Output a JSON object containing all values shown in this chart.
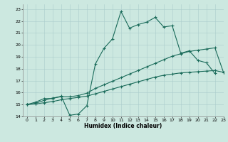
{
  "xlabel": "Humidex (Indice chaleur)",
  "bg_color": "#cce8e0",
  "line_color": "#1a6b5a",
  "grid_color": "#aacccc",
  "xlim": [
    -0.5,
    23
  ],
  "ylim": [
    14,
    23.4
  ],
  "x_ticks": [
    0,
    1,
    2,
    3,
    4,
    5,
    6,
    7,
    8,
    9,
    10,
    11,
    12,
    13,
    14,
    15,
    16,
    17,
    18,
    19,
    20,
    21,
    22,
    23
  ],
  "y_ticks": [
    14,
    15,
    16,
    17,
    18,
    19,
    20,
    21,
    22,
    23
  ],
  "series1_x": [
    0,
    1,
    2,
    3,
    4,
    5,
    6,
    7,
    8,
    9,
    10,
    11,
    12,
    13,
    14,
    15,
    16,
    17,
    18,
    19,
    20,
    21,
    22
  ],
  "series1_y": [
    15.0,
    15.2,
    15.5,
    15.5,
    15.7,
    14.1,
    14.2,
    14.9,
    18.4,
    19.7,
    20.5,
    22.8,
    21.4,
    21.7,
    21.9,
    22.3,
    21.5,
    21.6,
    19.3,
    19.5,
    18.7,
    18.5,
    17.6
  ],
  "series2_x": [
    0,
    1,
    2,
    3,
    4,
    5,
    6,
    7,
    8,
    9,
    10,
    11,
    12,
    13,
    14,
    15,
    16,
    17,
    18,
    19,
    20,
    21,
    22,
    23
  ],
  "series2_y": [
    15.0,
    15.1,
    15.35,
    15.55,
    15.65,
    15.65,
    15.75,
    15.95,
    16.35,
    16.65,
    16.95,
    17.25,
    17.55,
    17.85,
    18.15,
    18.45,
    18.75,
    19.05,
    19.25,
    19.45,
    19.55,
    19.65,
    19.75,
    17.7
  ],
  "series3_x": [
    0,
    1,
    2,
    3,
    4,
    5,
    6,
    7,
    8,
    9,
    10,
    11,
    12,
    13,
    14,
    15,
    16,
    17,
    18,
    19,
    20,
    21,
    22,
    23
  ],
  "series3_y": [
    15.0,
    15.05,
    15.15,
    15.25,
    15.4,
    15.5,
    15.6,
    15.7,
    15.9,
    16.1,
    16.3,
    16.5,
    16.7,
    16.9,
    17.1,
    17.3,
    17.45,
    17.55,
    17.65,
    17.7,
    17.75,
    17.8,
    17.85,
    17.7
  ]
}
